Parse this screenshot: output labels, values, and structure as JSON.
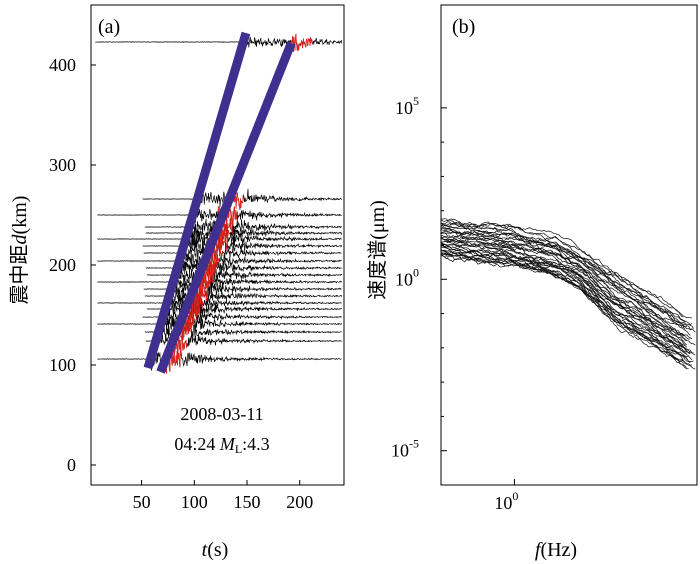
{
  "chart_data": [
    {
      "type": "line",
      "panel_label": "(a)",
      "xlabel_italic": "t",
      "xlabel_unit": "(s)",
      "ylabel_prefix": "震中距",
      "ylabel_italic": "d",
      "ylabel_unit": "(km)",
      "xlim": [
        2,
        242
      ],
      "ylim": [
        -20,
        460
      ],
      "x_ticks": [
        50,
        100,
        150,
        200
      ],
      "y_ticks": [
        0,
        100,
        200,
        300,
        400
      ],
      "event_date": "2008-03-11",
      "event_time": "04:24",
      "magnitude_symbol": "M",
      "magnitude_subscript": "L",
      "magnitude_value": ":4.3",
      "trace_distances_km": [
        106,
        124,
        133,
        141,
        148,
        156,
        162,
        169,
        176,
        183,
        190,
        197,
        204,
        212,
        219,
        226,
        232,
        238,
        250,
        266,
        423
      ],
      "p_wave_line": {
        "x": [
          56,
          149
        ],
        "y": [
          97,
          432
        ]
      },
      "s_wave_line": {
        "x": [
          68,
          192
        ],
        "y": [
          93,
          422
        ]
      },
      "colors": {
        "trace": "#000000",
        "window": "#e8241c",
        "fit_line": "#3f2f8f"
      }
    },
    {
      "type": "line",
      "panel_label": "(b)",
      "xlabel_italic": "f",
      "xlabel_unit": "(Hz)",
      "ylabel": "速度谱(μm)",
      "xscale": "log",
      "yscale": "log",
      "xlim": [
        0.3,
        20
      ],
      "ylim": [
        1e-06,
        100000000.0
      ],
      "x_ticks": [
        {
          "base": "10",
          "exp": "0",
          "value": 1
        }
      ],
      "y_ticks": [
        {
          "base": "10",
          "exp": "5",
          "value": 100000
        },
        {
          "base": "10",
          "exp": "0",
          "value": 1
        },
        {
          "base": "10",
          "exp": "-5",
          "value": 1e-05
        }
      ],
      "series_count": 36,
      "spectrum_envelope": {
        "f_hz": [
          0.3,
          1,
          2,
          3,
          5,
          20
        ],
        "upper_um": [
          100,
          60,
          30,
          12,
          4,
          0.1
        ],
        "lower_um": [
          3,
          1.5,
          0.7,
          0.3,
          0.03,
          0.001
        ]
      }
    }
  ]
}
